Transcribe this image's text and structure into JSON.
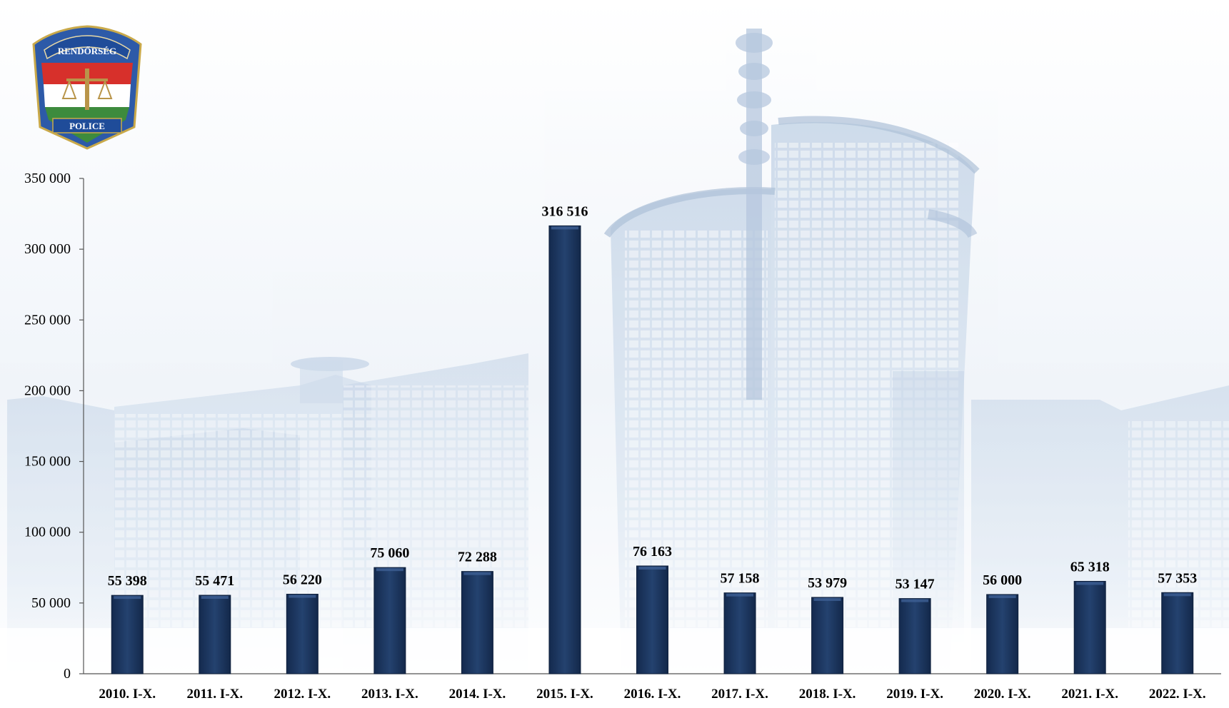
{
  "logo": {
    "top_text": "RENDŐRSÉG",
    "bottom_text": "POLICE"
  },
  "colors": {
    "bar_fill": "#1c3661",
    "bar_highlight": "#3d5f93",
    "axis": "#444444",
    "label": "#000000",
    "background_tint": "#c9d8ea"
  },
  "chart_data": {
    "type": "bar",
    "categories": [
      "2010. I-X.",
      "2011. I-X.",
      "2012. I-X.",
      "2013. I-X.",
      "2014. I-X.",
      "2015. I-X.",
      "2016. I-X.",
      "2017. I-X.",
      "2018. I-X.",
      "2019. I-X.",
      "2020. I-X.",
      "2021. I-X.",
      "2022. I-X."
    ],
    "values": [
      55398,
      55471,
      56220,
      75060,
      72288,
      316516,
      76163,
      57158,
      53979,
      53147,
      56000,
      65318,
      57353
    ],
    "data_labels": [
      "55 398",
      "55 471",
      "56 220",
      "75 060",
      "72 288",
      "316 516",
      "76 163",
      "57 158",
      "53 979",
      "53 147",
      "56 000",
      "65 318",
      "57 353"
    ],
    "y_ticks": [
      0,
      50000,
      100000,
      150000,
      200000,
      250000,
      300000,
      350000
    ],
    "y_tick_labels": [
      "0",
      "50 000",
      "100 000",
      "150 000",
      "200 000",
      "250 000",
      "300 000",
      "350 000"
    ],
    "ylim": [
      0,
      350000
    ],
    "title": "",
    "xlabel": "",
    "ylabel": "",
    "grid": false,
    "legend": "none"
  }
}
